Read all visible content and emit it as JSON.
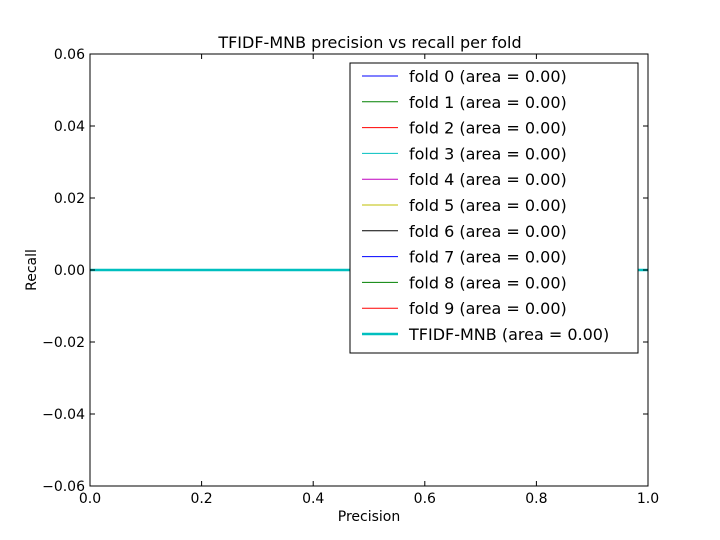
{
  "chart_data": {
    "type": "line",
    "title": "TFIDF-MNB precision vs recall per fold",
    "xlabel": "Precision",
    "ylabel": "Recall",
    "xlim": [
      0.0,
      1.0
    ],
    "ylim": [
      -0.06,
      0.06
    ],
    "xticks": [
      "0.0",
      "0.2",
      "0.4",
      "0.6",
      "0.8",
      "1.0"
    ],
    "yticks": [
      "0.06",
      "0.04",
      "0.02",
      "0.00",
      "−0.02",
      "−0.04",
      "−0.06"
    ],
    "grid": false,
    "legend_position": "top-right",
    "series": [
      {
        "name": "fold 0 (area = 0.00)",
        "color": "#0000ff",
        "x": [
          0.0,
          1.0
        ],
        "y": [
          0.0,
          0.0
        ]
      },
      {
        "name": "fold 1 (area = 0.00)",
        "color": "#008000",
        "x": [
          0.0,
          1.0
        ],
        "y": [
          0.0,
          0.0
        ]
      },
      {
        "name": "fold 2 (area = 0.00)",
        "color": "#ff0000",
        "x": [
          0.0,
          1.0
        ],
        "y": [
          0.0,
          0.0
        ]
      },
      {
        "name": "fold 3 (area = 0.00)",
        "color": "#00bfbf",
        "x": [
          0.0,
          1.0
        ],
        "y": [
          0.0,
          0.0
        ]
      },
      {
        "name": "fold 4 (area = 0.00)",
        "color": "#bf00bf",
        "x": [
          0.0,
          1.0
        ],
        "y": [
          0.0,
          0.0
        ]
      },
      {
        "name": "fold 5 (area = 0.00)",
        "color": "#bfbf00",
        "x": [
          0.0,
          1.0
        ],
        "y": [
          0.0,
          0.0
        ]
      },
      {
        "name": "fold 6 (area = 0.00)",
        "color": "#000000",
        "x": [
          0.0,
          1.0
        ],
        "y": [
          0.0,
          0.0
        ]
      },
      {
        "name": "fold 7 (area = 0.00)",
        "color": "#0000ff",
        "x": [
          0.0,
          1.0
        ],
        "y": [
          0.0,
          0.0
        ]
      },
      {
        "name": "fold 8 (area = 0.00)",
        "color": "#008000",
        "x": [
          0.0,
          1.0
        ],
        "y": [
          0.0,
          0.0
        ]
      },
      {
        "name": "fold 9 (area = 0.00)",
        "color": "#ff0000",
        "x": [
          0.0,
          1.0
        ],
        "y": [
          0.0,
          0.0
        ]
      },
      {
        "name": "TFIDF-MNB (area = 0.00)",
        "color": "#00bfbf",
        "x": [
          0.0,
          1.0
        ],
        "y": [
          0.0,
          0.0
        ],
        "emphasis": "thick"
      }
    ]
  }
}
